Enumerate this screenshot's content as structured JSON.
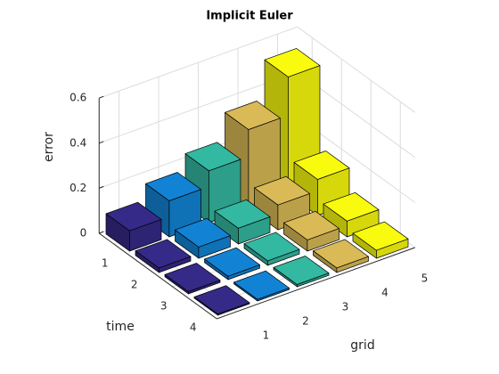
{
  "chart_data": {
    "type": "bar3",
    "title": "Implicit Euler",
    "xlabel": "grid",
    "ylabel": "time",
    "zlabel": "error",
    "xticks": [
      1,
      2,
      3,
      4,
      5
    ],
    "yticks": [
      1,
      2,
      3,
      4
    ],
    "xlim": [
      0.5,
      5.5
    ],
    "ylim": [
      0.5,
      4.5
    ],
    "zlim": [
      0,
      0.6
    ],
    "zticks": [
      0,
      0.2,
      0.4,
      0.6
    ],
    "grid": true,
    "series": [
      {
        "color": "#352a87",
        "values": [
          0.09,
          0.02,
          0.01,
          0.005
        ]
      },
      {
        "color": "#1283d4",
        "values": [
          0.16,
          0.05,
          0.015,
          0.007
        ]
      },
      {
        "color": "#33b8a1",
        "values": [
          0.23,
          0.07,
          0.02,
          0.01
        ]
      },
      {
        "color": "#d9ba56",
        "values": [
          0.35,
          0.11,
          0.05,
          0.02
        ]
      },
      {
        "color": "#f9fb0e",
        "values": [
          0.52,
          0.16,
          0.07,
          0.035
        ]
      }
    ]
  }
}
